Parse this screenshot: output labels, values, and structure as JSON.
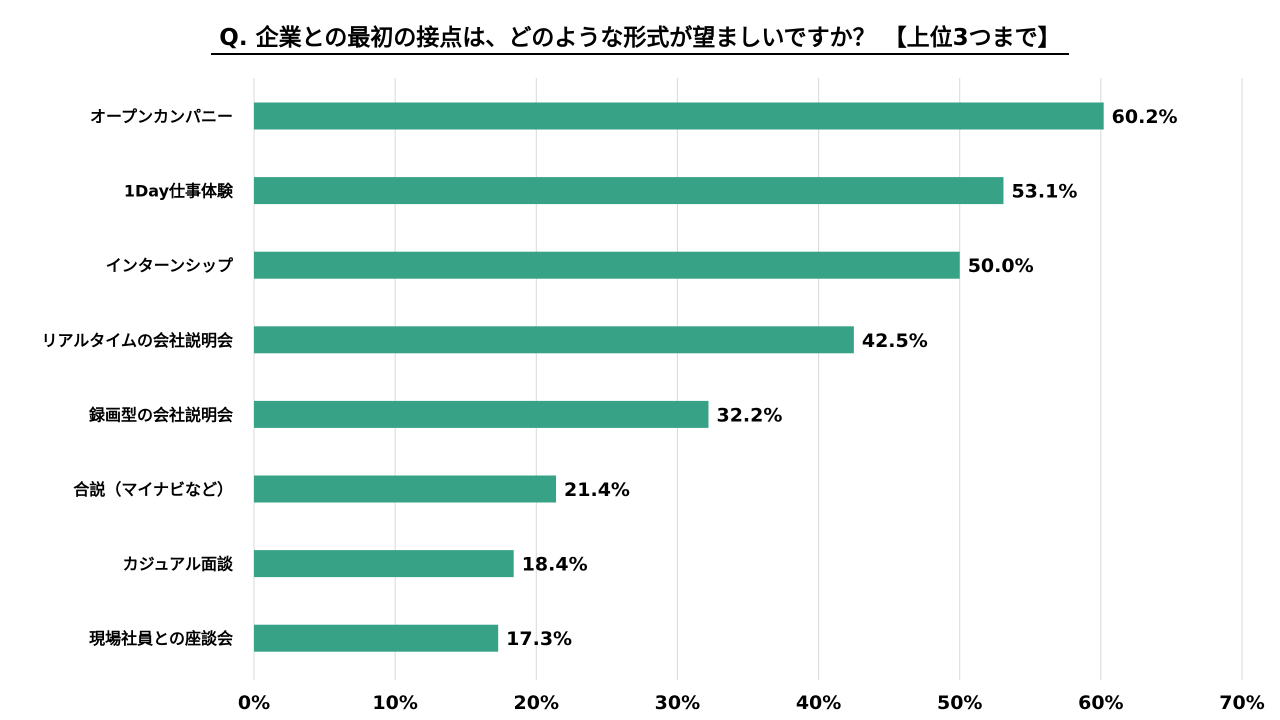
{
  "chart_data": {
    "type": "bar",
    "orientation": "horizontal",
    "title": "Q. 企業との最初の接点は、どのような形式が望ましいですか？ 【上位3つまで】",
    "categories": [
      "オープンカンパニー",
      "1Day仕事体験",
      "インターンシップ",
      "リアルタイムの会社説明会",
      "録画型の会社説明会",
      "合説（マイナビなど）",
      "カジュアル面談",
      "現場社員との座談会"
    ],
    "values": [
      60.2,
      53.1,
      50.0,
      42.5,
      32.2,
      21.4,
      18.4,
      17.3
    ],
    "value_labels": [
      "60.2%",
      "53.1%",
      "50.0%",
      "42.5%",
      "32.2%",
      "21.4%",
      "18.4%",
      "17.3%"
    ],
    "xlim": [
      0,
      70
    ],
    "xticks": [
      0,
      10,
      20,
      30,
      40,
      50,
      60,
      70
    ],
    "xtick_labels": [
      "0%",
      "10%",
      "20%",
      "30%",
      "40%",
      "50%",
      "60%",
      "70%"
    ],
    "xlabel": "",
    "ylabel": "",
    "grid": true,
    "legend": "none",
    "bar_color": "#38a287"
  }
}
